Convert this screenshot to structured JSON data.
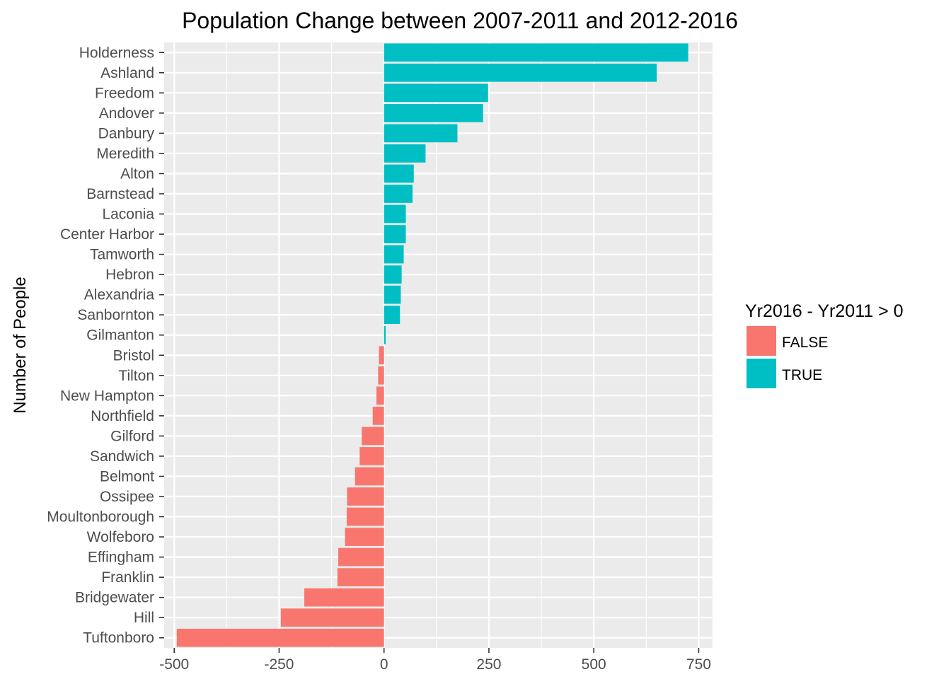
{
  "chart_data": {
    "type": "bar",
    "orientation": "horizontal",
    "title": "Population Change between 2007-2011 and 2012-2016",
    "xlabel": "",
    "ylabel": "Number of People",
    "xlim": [
      -524,
      783
    ],
    "xticks": [
      -500,
      -250,
      0,
      250,
      500,
      750
    ],
    "xtick_labels": [
      "-500",
      "-250",
      "0",
      "250",
      "500",
      "750"
    ],
    "grid": true,
    "legend": {
      "title": "Yr2016 - Yr2011 > 0",
      "placement": "right",
      "entries": [
        {
          "label": "FALSE",
          "color": "#F8766D"
        },
        {
          "label": "TRUE",
          "color": "#00BFC4"
        }
      ]
    },
    "categories": [
      "Holderness",
      "Ashland",
      "Freedom",
      "Andover",
      "Danbury",
      "Meredith",
      "Alton",
      "Barnstead",
      "Laconia",
      "Center Harbor",
      "Tamworth",
      "Hebron",
      "Alexandria",
      "Sanbornton",
      "Gilmanton",
      "Bristol",
      "Tilton",
      "New Hampton",
      "Northfield",
      "Gilford",
      "Sandwich",
      "Belmont",
      "Ossipee",
      "Moultonborough",
      "Wolfeboro",
      "Effingham",
      "Franklin",
      "Bridgewater",
      "Hill",
      "Tuftonboro"
    ],
    "values": [
      725,
      650,
      248,
      236,
      175,
      99,
      71,
      68,
      52,
      52,
      47,
      42,
      40,
      38,
      4,
      -12,
      -14,
      -18,
      -27,
      -53,
      -58,
      -69,
      -88,
      -89,
      -93,
      -109,
      -111,
      -190,
      -246,
      -494
    ],
    "colors": {
      "negative": "#F8766D",
      "positive": "#00BFC4"
    }
  },
  "theme": {
    "panel_background": "#EBEBEB",
    "grid_color": "#FFFFFF",
    "tick_label_color": "#4D4D4D",
    "tick_color": "#333333"
  }
}
